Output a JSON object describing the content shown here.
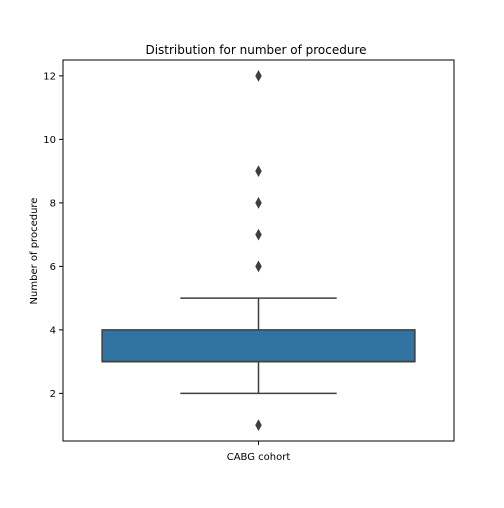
{
  "chart_data": {
    "type": "box",
    "title": "Distribution for number of procedure",
    "xlabel": "",
    "ylabel": "Number of procedure",
    "categories": [
      "CABG cohort"
    ],
    "ylim": [
      0.5,
      12.5
    ],
    "yticks": [
      2,
      4,
      6,
      8,
      10,
      12
    ],
    "grid": false,
    "box": {
      "q1": 3,
      "median": 3,
      "q3": 4,
      "whisker_low": 2,
      "whisker_high": 5,
      "color": "#3274a1"
    },
    "outliers": [
      1,
      6,
      7,
      8,
      9,
      12
    ]
  }
}
